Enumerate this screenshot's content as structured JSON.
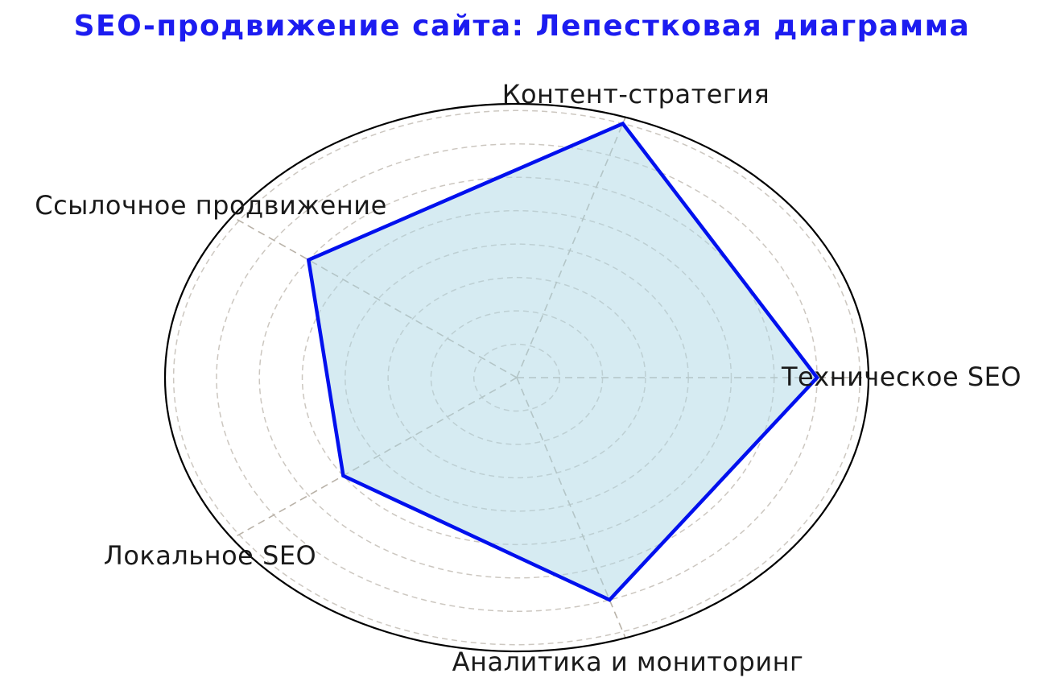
{
  "title": "SEO-продвижение сайта: Лепестковая диаграмма",
  "colors": {
    "title_text": "#1c1cf0",
    "category_text": "#1a1a1a",
    "series_line": "#0010ee",
    "series_fill": "#add8e6",
    "ring_grid": "#ccc7c0",
    "ray_grid": "#b9b2a8",
    "outer_spine": "#000000",
    "background": "#ffffff"
  },
  "chart_data": {
    "type": "radar",
    "title": "SEO-продвижение сайта: Лепестковая диаграмма",
    "categories": [
      "Техническое SEO",
      "Контент-стратегия",
      "Ссылочное продвижение",
      "Локальное SEO",
      "Аналитика и мониторинг"
    ],
    "values": [
      7,
      8,
      6,
      5,
      7
    ],
    "angles_deg": [
      0,
      72,
      144,
      216,
      288
    ],
    "rlim": [
      0,
      8.2
    ],
    "ring_step": 1,
    "ring_count": 8,
    "grid_style": "dashed",
    "radial_tick_labels_visible": false,
    "legend_position": "none",
    "fill_opacity": 0.5,
    "line_width": 4.5
  }
}
